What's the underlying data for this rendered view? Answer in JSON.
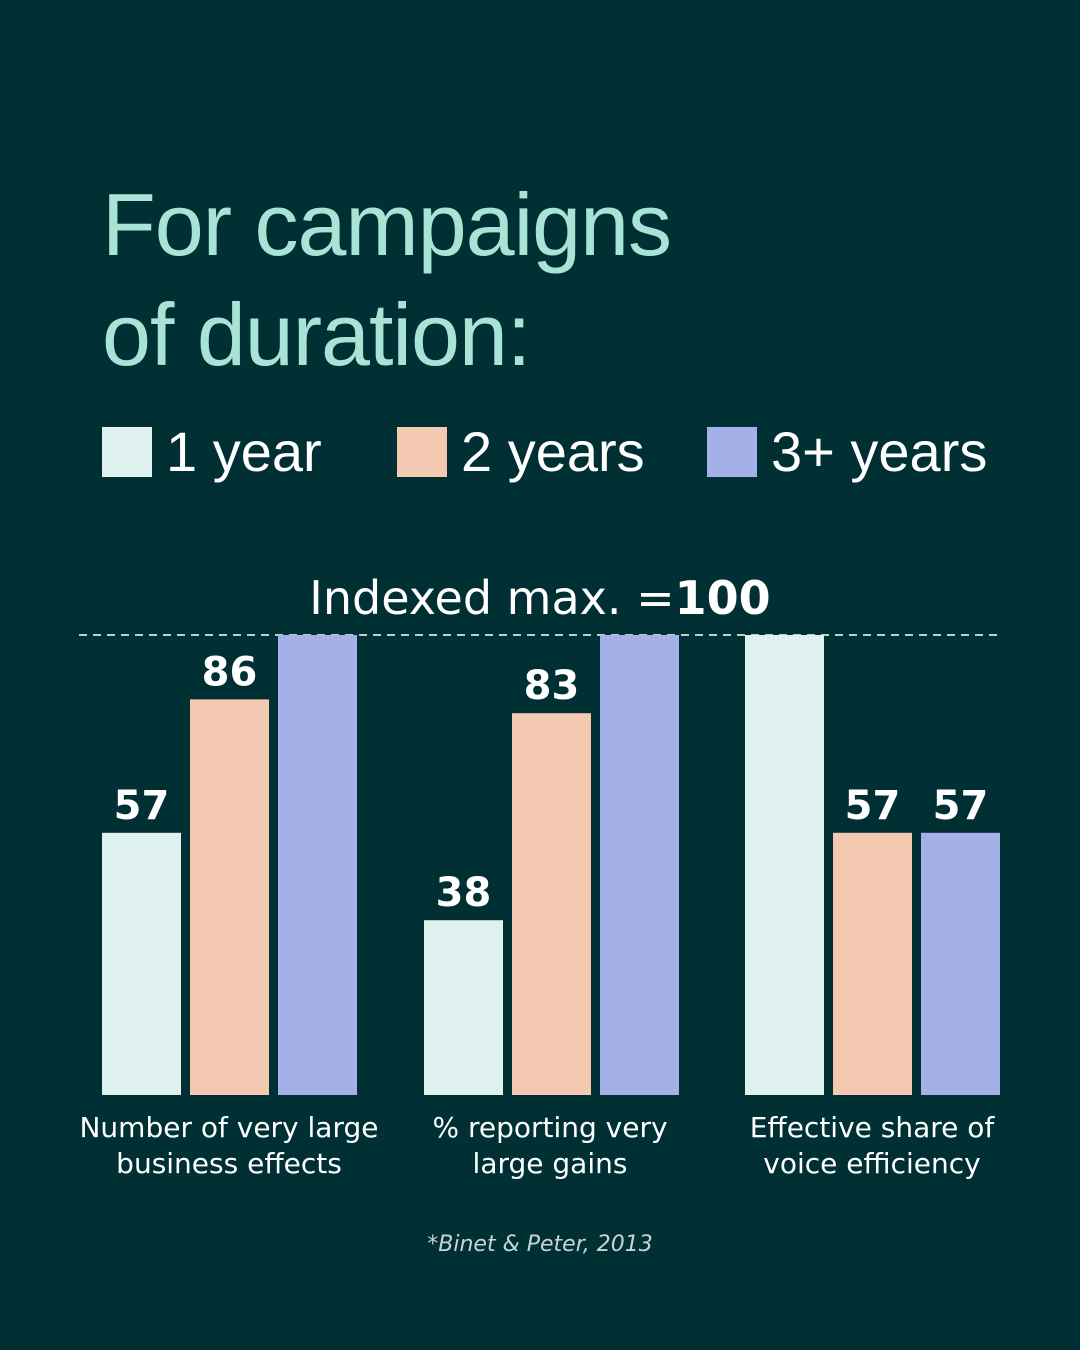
{
  "title_lines": [
    "For campaigns",
    "of duration:"
  ],
  "legend": [
    {
      "label": "1 year",
      "color": "#dff1ef"
    },
    {
      "label": "2 years",
      "color": "#f3c9b2"
    },
    {
      "label": "3+ years",
      "color": "#a4b0e8"
    }
  ],
  "index_note": {
    "prefix": "Indexed max. =",
    "value": "100"
  },
  "source": "*Binet & Peter, 2013",
  "chart_data": {
    "type": "bar",
    "categories": [
      "Number of very large business effects",
      "% reporting very large gains",
      "Effective share of voice efficiency"
    ],
    "series": [
      {
        "name": "1 year",
        "values": [
          57,
          38,
          100
        ],
        "labels": [
          "57",
          "38",
          ""
        ]
      },
      {
        "name": "2 years",
        "values": [
          86,
          83,
          57
        ],
        "labels": [
          "86",
          "83",
          "57"
        ]
      },
      {
        "name": "3+ years",
        "values": [
          100,
          100,
          57
        ],
        "labels": [
          "",
          "",
          "57"
        ]
      }
    ],
    "ylim": [
      0,
      100
    ],
    "max_line_value": 100,
    "legend_position": "top"
  }
}
